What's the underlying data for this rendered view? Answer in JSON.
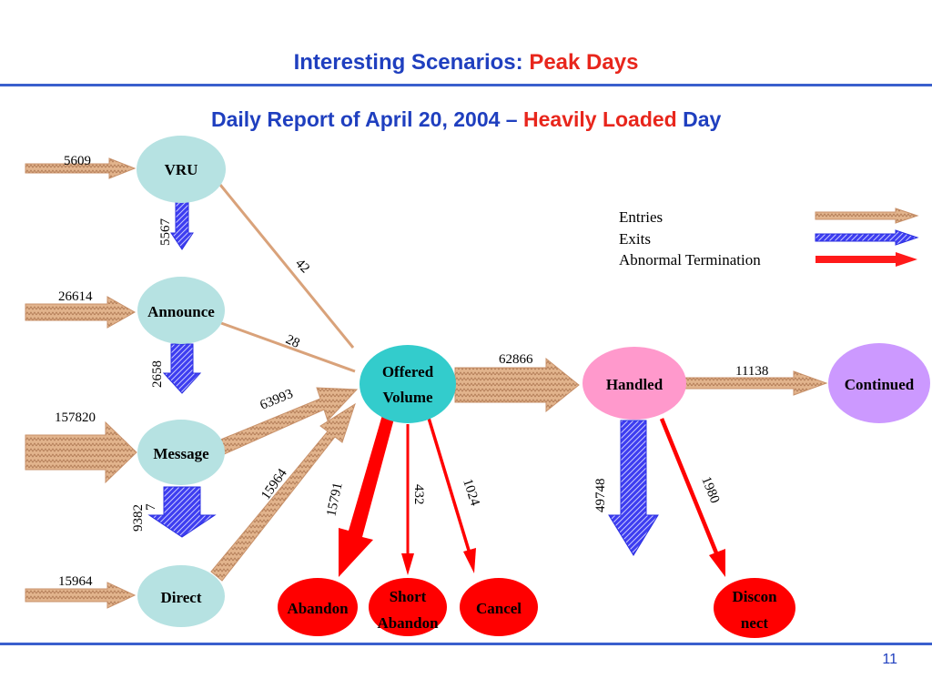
{
  "header": {
    "title_part1": "Interesting Scenarios: ",
    "title_part2": "Peak Days",
    "subtitle_part1": "Daily Report of April 20, 2004 – ",
    "subtitle_part2": "Heavily Loaded",
    "subtitle_part3": " Day"
  },
  "colors": {
    "entries": "#d9a27a",
    "exits": "#2a2ee0",
    "abnormal": "#ff1a1a",
    "node_teal_light": "#b6e2e2",
    "node_offered": "#33cccc",
    "node_handled": "#ff99cc",
    "node_continued": "#cc99ff",
    "node_red": "#ff0000"
  },
  "nodes": {
    "vru": "VRU",
    "announce": "Announce",
    "message": "Message",
    "direct": "Direct",
    "offered_line1": "Offered",
    "offered_line2": "Volume",
    "handled": "Handled",
    "continued": "Continued",
    "abandon": "Abandon",
    "short_abandon_line1": "Short",
    "short_abandon_line2": "Abandon",
    "cancel": "Cancel",
    "disconnect_line1": "Discon",
    "disconnect_line2": "nect"
  },
  "flows": {
    "entry_vru": "5609",
    "entry_announce": "26614",
    "entry_message": "157820",
    "entry_direct": "15964",
    "vru_to_announce": "5567",
    "announce_to_message": "2658",
    "message_to_direct": "9382",
    "message_to_direct_extra": "7",
    "vru_to_offered": "42",
    "announce_to_offered": "28",
    "message_to_offered": "63993",
    "direct_to_offered": "15964",
    "offered_to_handled": "62866",
    "handled_to_continued": "11138",
    "offered_to_abandon": "15791",
    "offered_to_short_abandon": "432",
    "offered_to_cancel": "1024",
    "handled_exit": "49748",
    "handled_to_disconnect": "1980"
  },
  "legend": {
    "entries": "Entries",
    "exits": "Exits",
    "abnormal": "Abnormal Termination"
  },
  "footer": {
    "page_number": "11"
  }
}
